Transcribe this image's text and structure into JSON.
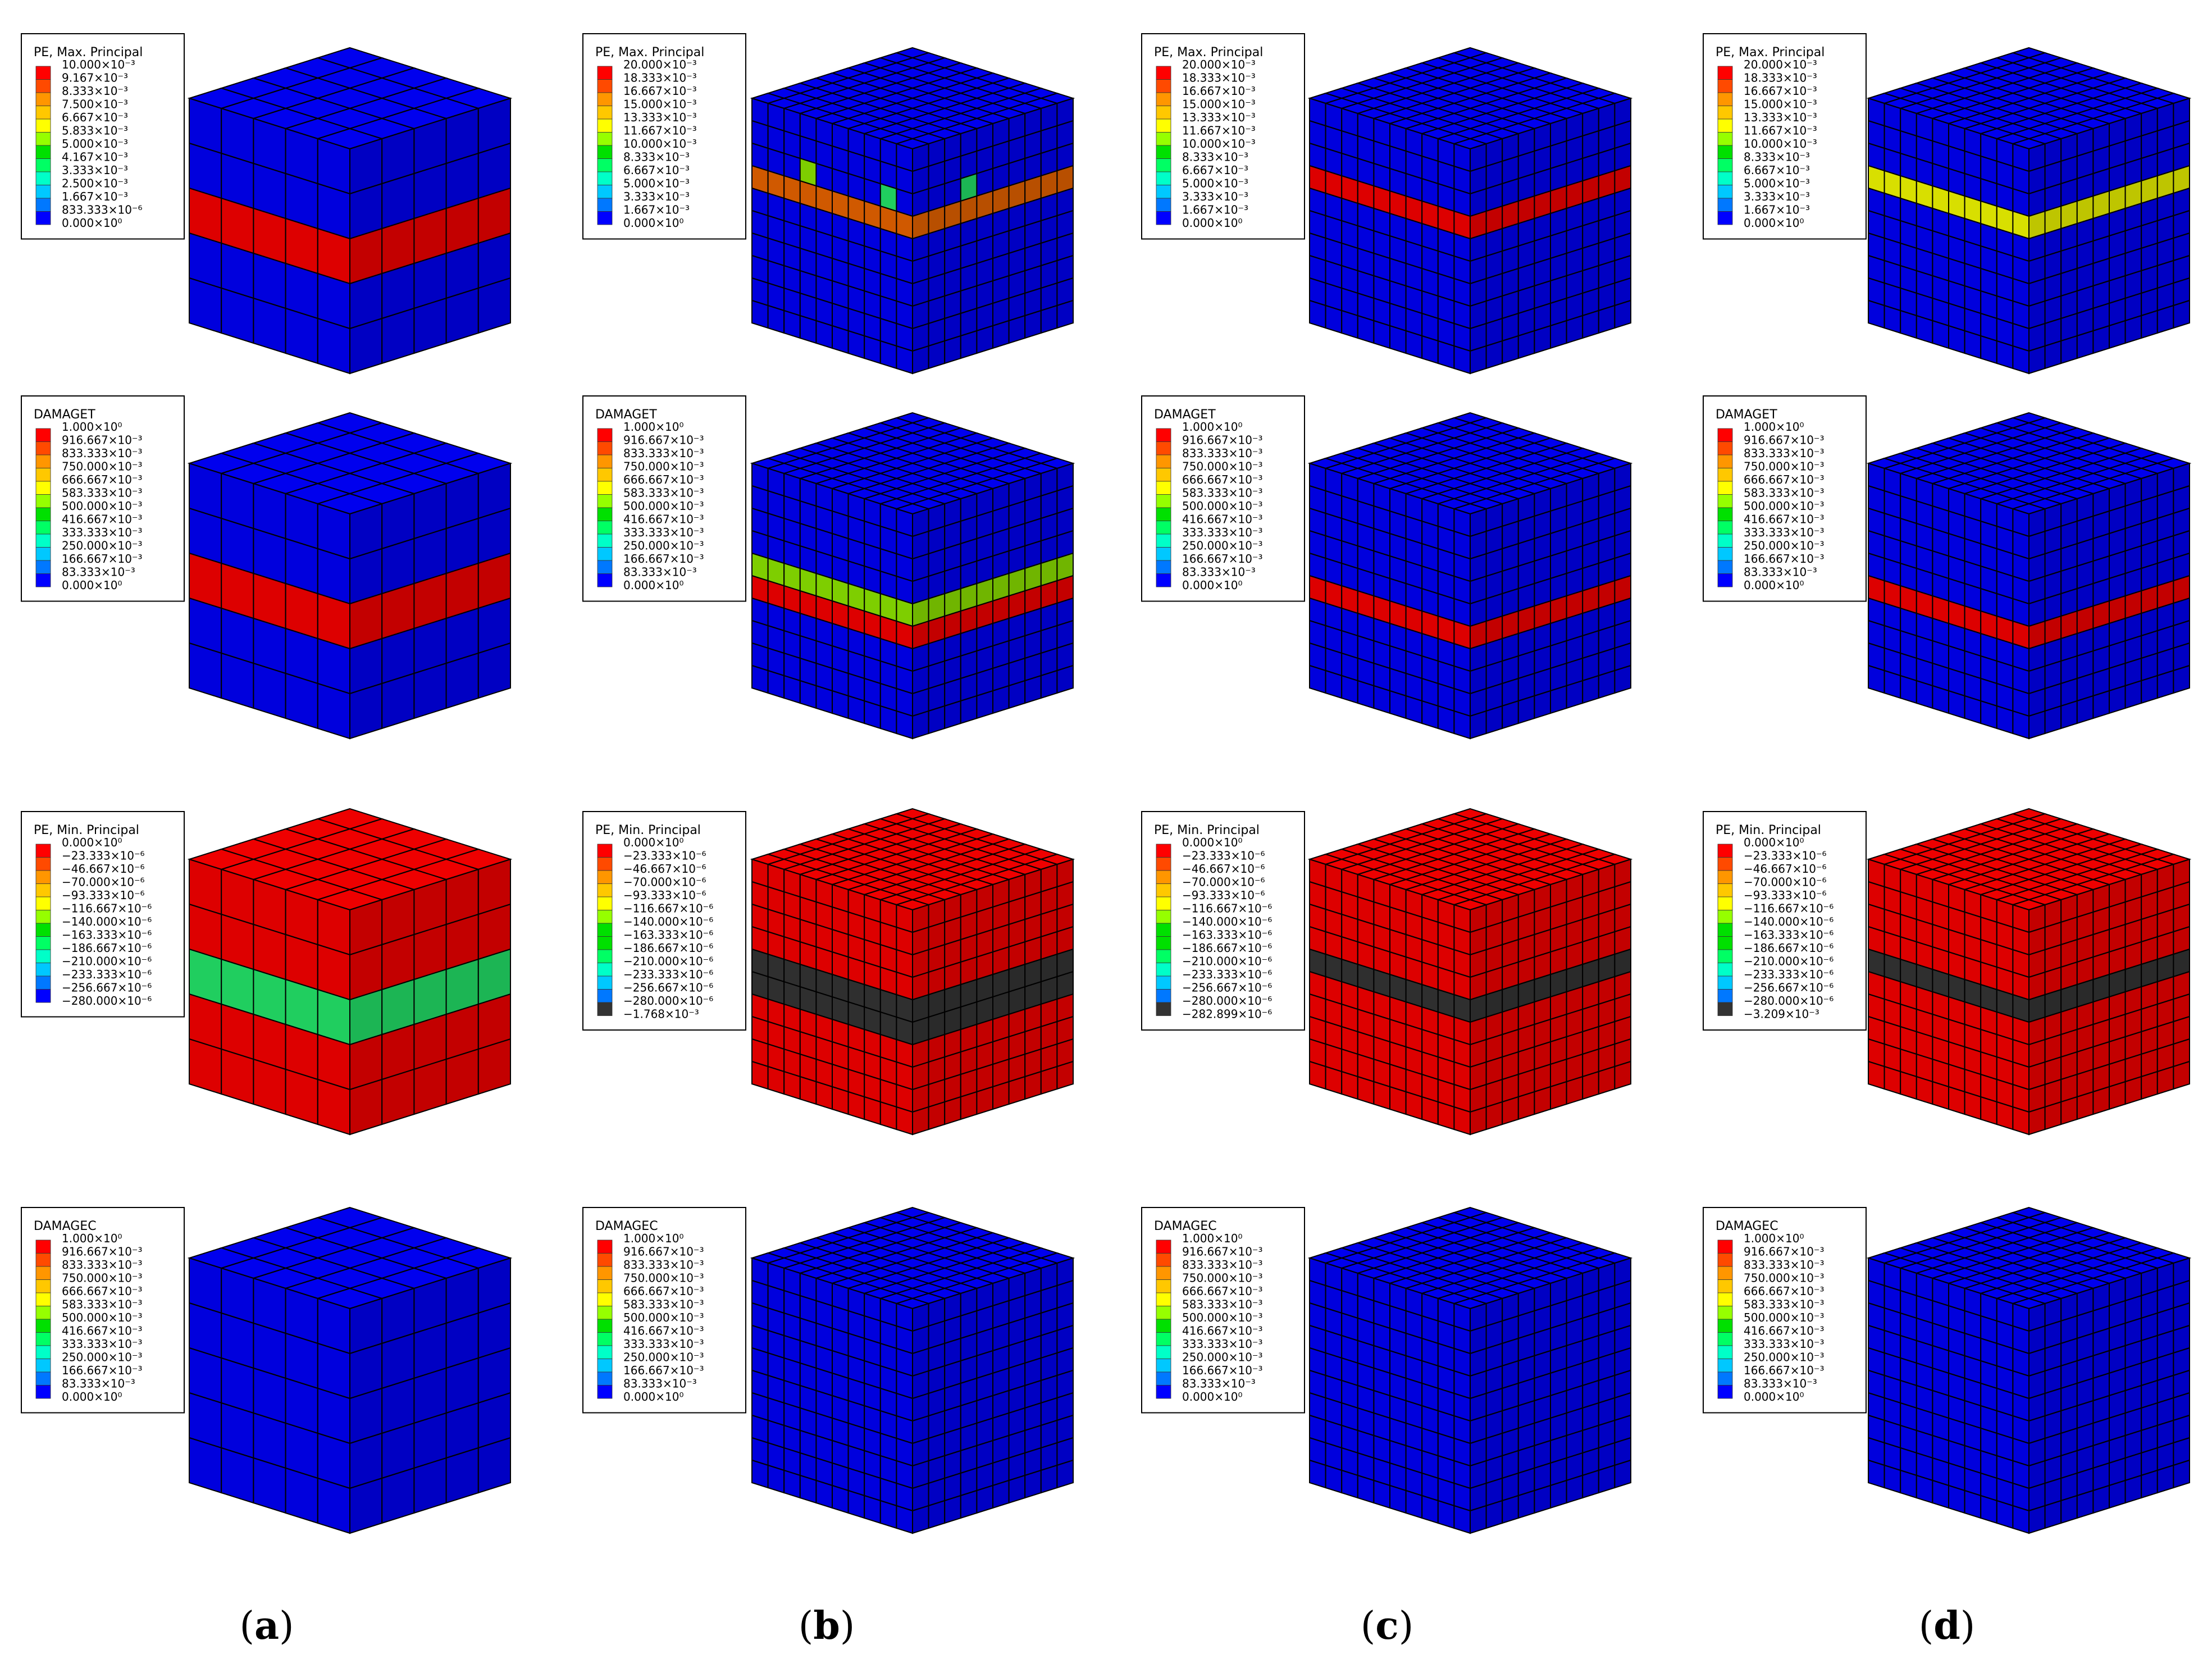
{
  "colors": {
    "legend_scale": [
      "#ff0000",
      "#ff4a00",
      "#ff9600",
      "#ffc800",
      "#ffff00",
      "#96ff00",
      "#00e000",
      "#00ff64",
      "#00ffc8",
      "#00c8ff",
      "#0078ff",
      "#0000ff"
    ],
    "mesh_blue": "#0000ee",
    "mesh_red": "#ee0000",
    "mesh_orange": "#e06000",
    "mesh_yellow": "#e8f000",
    "mesh_green": "#22dd66",
    "mesh_lime": "#88dd00",
    "mesh_gray": "#333333",
    "mesh_line": "#000000"
  },
  "column_labels": [
    {
      "open": "(",
      "letter": "a",
      "close": ")"
    },
    {
      "open": "(",
      "letter": "b",
      "close": ")"
    },
    {
      "open": "(",
      "letter": "c",
      "close": ")"
    },
    {
      "open": "(",
      "letter": "d",
      "close": ")"
    }
  ],
  "rows": [
    {
      "title": "PE, Max. Principal",
      "legends": [
        [
          "10.000×10⁻³",
          "9.167×10⁻³",
          "8.333×10⁻³",
          "7.500×10⁻³",
          "6.667×10⁻³",
          "5.833×10⁻³",
          "5.000×10⁻³",
          "4.167×10⁻³",
          "3.333×10⁻³",
          "2.500×10⁻³",
          "1.667×10⁻³",
          "833.333×10⁻⁶",
          "0.000×10⁰"
        ],
        [
          "20.000×10⁻³",
          "18.333×10⁻³",
          "16.667×10⁻³",
          "15.000×10⁻³",
          "13.333×10⁻³",
          "11.667×10⁻³",
          "10.000×10⁻³",
          "8.333×10⁻³",
          "6.667×10⁻³",
          "5.000×10⁻³",
          "3.333×10⁻³",
          "1.667×10⁻³",
          "0.000×10⁰"
        ],
        [
          "20.000×10⁻³",
          "18.333×10⁻³",
          "16.667×10⁻³",
          "15.000×10⁻³",
          "13.333×10⁻³",
          "11.667×10⁻³",
          "10.000×10⁻³",
          "8.333×10⁻³",
          "6.667×10⁻³",
          "5.000×10⁻³",
          "3.333×10⁻³",
          "1.667×10⁻³",
          "0.000×10⁰"
        ],
        [
          "20.000×10⁻³",
          "18.333×10⁻³",
          "16.667×10⁻³",
          "15.000×10⁻³",
          "13.333×10⁻³",
          "11.667×10⁻³",
          "10.000×10⁻³",
          "8.333×10⁻³",
          "6.667×10⁻³",
          "5.000×10⁻³",
          "3.333×10⁻³",
          "1.667×10⁻³",
          "0.000×10⁰"
        ]
      ]
    },
    {
      "title": "DAMAGET",
      "legends": [
        [
          "1.000×10⁰",
          "916.667×10⁻³",
          "833.333×10⁻³",
          "750.000×10⁻³",
          "666.667×10⁻³",
          "583.333×10⁻³",
          "500.000×10⁻³",
          "416.667×10⁻³",
          "333.333×10⁻³",
          "250.000×10⁻³",
          "166.667×10⁻³",
          "83.333×10⁻³",
          "0.000×10⁰"
        ],
        [
          "1.000×10⁰",
          "916.667×10⁻³",
          "833.333×10⁻³",
          "750.000×10⁻³",
          "666.667×10⁻³",
          "583.333×10⁻³",
          "500.000×10⁻³",
          "416.667×10⁻³",
          "333.333×10⁻³",
          "250.000×10⁻³",
          "166.667×10⁻³",
          "83.333×10⁻³",
          "0.000×10⁰"
        ],
        [
          "1.000×10⁰",
          "916.667×10⁻³",
          "833.333×10⁻³",
          "750.000×10⁻³",
          "666.667×10⁻³",
          "583.333×10⁻³",
          "500.000×10⁻³",
          "416.667×10⁻³",
          "333.333×10⁻³",
          "250.000×10⁻³",
          "166.667×10⁻³",
          "83.333×10⁻³",
          "0.000×10⁰"
        ],
        [
          "1.000×10⁰",
          "916.667×10⁻³",
          "833.333×10⁻³",
          "750.000×10⁻³",
          "666.667×10⁻³",
          "583.333×10⁻³",
          "500.000×10⁻³",
          "416.667×10⁻³",
          "333.333×10⁻³",
          "250.000×10⁻³",
          "166.667×10⁻³",
          "83.333×10⁻³",
          "0.000×10⁰"
        ]
      ]
    },
    {
      "title": "PE, Min. Principal",
      "legends": [
        [
          "0.000×10⁰",
          "−23.333×10⁻⁶",
          "−46.667×10⁻⁶",
          "−70.000×10⁻⁶",
          "−93.333×10⁻⁶",
          "−116.667×10⁻⁶",
          "−140.000×10⁻⁶",
          "−163.333×10⁻⁶",
          "−186.667×10⁻⁶",
          "−210.000×10⁻⁶",
          "−233.333×10⁻⁶",
          "−256.667×10⁻⁶",
          "−280.000×10⁻⁶"
        ],
        [
          "0.000×10⁰",
          "−23.333×10⁻⁶",
          "−46.667×10⁻⁶",
          "−70.000×10⁻⁶",
          "−93.333×10⁻⁶",
          "−116.667×10⁻⁶",
          "−140.000×10⁻⁶",
          "−163.333×10⁻⁶",
          "−186.667×10⁻⁶",
          "−210.000×10⁻⁶",
          "−233.333×10⁻⁶",
          "−256.667×10⁻⁶",
          "−280.000×10⁻⁶",
          "−1.768×10⁻³"
        ],
        [
          "0.000×10⁰",
          "−23.333×10⁻⁶",
          "−46.667×10⁻⁶",
          "−70.000×10⁻⁶",
          "−93.333×10⁻⁶",
          "−116.667×10⁻⁶",
          "−140.000×10⁻⁶",
          "−163.333×10⁻⁶",
          "−186.667×10⁻⁶",
          "−210.000×10⁻⁶",
          "−233.333×10⁻⁶",
          "−256.667×10⁻⁶",
          "−280.000×10⁻⁶",
          "−282.899×10⁻⁶"
        ],
        [
          "0.000×10⁰",
          "−23.333×10⁻⁶",
          "−46.667×10⁻⁶",
          "−70.000×10⁻⁶",
          "−93.333×10⁻⁶",
          "−116.667×10⁻⁶",
          "−140.000×10⁻⁶",
          "−163.333×10⁻⁶",
          "−186.667×10⁻⁶",
          "−210.000×10⁻⁶",
          "−233.333×10⁻⁶",
          "−256.667×10⁻⁶",
          "−280.000×10⁻⁶",
          "−3.209×10⁻³"
        ]
      ]
    },
    {
      "title": "DAMAGEC",
      "legends": [
        [
          "1.000×10⁰",
          "916.667×10⁻³",
          "833.333×10⁻³",
          "750.000×10⁻³",
          "666.667×10⁻³",
          "583.333×10⁻³",
          "500.000×10⁻³",
          "416.667×10⁻³",
          "333.333×10⁻³",
          "250.000×10⁻³",
          "166.667×10⁻³",
          "83.333×10⁻³",
          "0.000×10⁰"
        ],
        [
          "1.000×10⁰",
          "916.667×10⁻³",
          "833.333×10⁻³",
          "750.000×10⁻³",
          "666.667×10⁻³",
          "583.333×10⁻³",
          "500.000×10⁻³",
          "416.667×10⁻³",
          "333.333×10⁻³",
          "250.000×10⁻³",
          "166.667×10⁻³",
          "83.333×10⁻³",
          "0.000×10⁰"
        ],
        [
          "1.000×10⁰",
          "916.667×10⁻³",
          "833.333×10⁻³",
          "750.000×10⁻³",
          "666.667×10⁻³",
          "583.333×10⁻³",
          "500.000×10⁻³",
          "416.667×10⁻³",
          "333.333×10⁻³",
          "250.000×10⁻³",
          "166.667×10⁻³",
          "83.333×10⁻³",
          "0.000×10⁰"
        ],
        [
          "1.000×10⁰",
          "916.667×10⁻³",
          "833.333×10⁻³",
          "750.000×10⁻³",
          "666.667×10⁻³",
          "583.333×10⁻³",
          "500.000×10⁻³",
          "416.667×10⁻³",
          "333.333×10⁻³",
          "250.000×10⁻³",
          "166.667×10⁻³",
          "83.333×10⁻³",
          "0.000×10⁰"
        ]
      ]
    }
  ],
  "cubes": [
    [
      {
        "mesh": 5,
        "base": "blue",
        "bands": [
          {
            "row": 2,
            "color": "red"
          }
        ]
      },
      {
        "mesh": 10,
        "base": "blue",
        "bands": [
          {
            "row": 3,
            "color": "orange"
          }
        ],
        "spots": [
          {
            "row": 2,
            "col": 3,
            "color": "lime"
          },
          {
            "row": 2,
            "col": 8,
            "color": "green"
          }
        ]
      },
      {
        "mesh": 10,
        "base": "blue",
        "bands": [
          {
            "row": 3,
            "color": "red"
          }
        ]
      },
      {
        "mesh": 10,
        "base": "blue",
        "bands": [
          {
            "row": 3,
            "color": "yellow"
          }
        ]
      }
    ],
    [
      {
        "mesh": 5,
        "base": "blue",
        "bands": [
          {
            "row": 2,
            "color": "red"
          }
        ]
      },
      {
        "mesh": 10,
        "base": "blue",
        "bands": [
          {
            "row": 4,
            "color": "lime"
          },
          {
            "row": 5,
            "color": "red"
          }
        ]
      },
      {
        "mesh": 10,
        "base": "blue",
        "bands": [
          {
            "row": 5,
            "color": "red"
          }
        ]
      },
      {
        "mesh": 10,
        "base": "blue",
        "bands": [
          {
            "row": 5,
            "color": "red"
          }
        ]
      }
    ],
    [
      {
        "mesh": 5,
        "base": "red",
        "bands": [
          {
            "row": 2,
            "color": "green"
          }
        ]
      },
      {
        "mesh": 10,
        "base": "red",
        "bands": [
          {
            "row": 4,
            "color": "gray"
          },
          {
            "row": 5,
            "color": "gray"
          }
        ]
      },
      {
        "mesh": 10,
        "base": "red",
        "bands": [
          {
            "row": 4,
            "color": "gray"
          }
        ]
      },
      {
        "mesh": 10,
        "base": "red",
        "bands": [
          {
            "row": 4,
            "color": "gray"
          }
        ]
      }
    ],
    [
      {
        "mesh": 5,
        "base": "blue",
        "bands": []
      },
      {
        "mesh": 10,
        "base": "blue",
        "bands": []
      },
      {
        "mesh": 10,
        "base": "blue",
        "bands": []
      },
      {
        "mesh": 10,
        "base": "blue",
        "bands": []
      }
    ]
  ]
}
